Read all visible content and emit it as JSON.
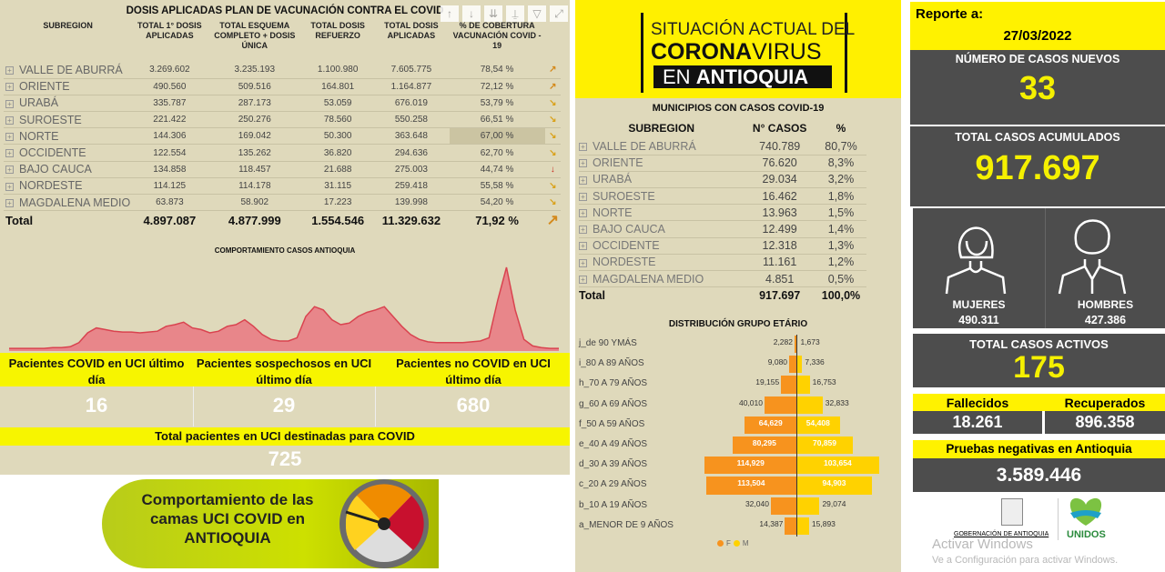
{
  "vaccination": {
    "title": "DOSIS APLICADAS PLAN DE VACUNACIÓN CONTRA EL COVID",
    "columns": [
      "SUBREGION",
      "TOTAL 1° DOSIS APLICADAS",
      "TOTAL ESQUEMA COMPLETO + DOSIS ÚNICA",
      "TOTAL DOSIS REFUERZO",
      "TOTAL DOSIS APLICADAS",
      "% DE COBERTURA VACUNACIÓN COVID - 19"
    ],
    "rows": [
      [
        "VALLE DE ABURRÁ",
        "3.269.602",
        "3.235.193",
        "1.100.980",
        "7.605.775",
        "78,54 %",
        "up"
      ],
      [
        "ORIENTE",
        "490.560",
        "509.516",
        "164.801",
        "1.164.877",
        "72,12 %",
        "up"
      ],
      [
        "URABÁ",
        "335.787",
        "287.173",
        "53.059",
        "676.019",
        "53,79 %",
        "down-right"
      ],
      [
        "SUROESTE",
        "221.422",
        "250.276",
        "78.560",
        "550.258",
        "66,51 %",
        "down-right"
      ],
      [
        "NORTE",
        "144.306",
        "169.042",
        "50.300",
        "363.648",
        "67,00 %",
        "down-right"
      ],
      [
        "OCCIDENTE",
        "122.554",
        "135.262",
        "36.820",
        "294.636",
        "62,70 %",
        "down-right"
      ],
      [
        "BAJO CAUCA",
        "134.858",
        "118.457",
        "21.688",
        "275.003",
        "44,74 %",
        "down"
      ],
      [
        "NORDESTE",
        "114.125",
        "114.178",
        "31.115",
        "259.418",
        "55,58 %",
        "down-right"
      ],
      [
        "MAGDALENA MEDIO",
        "63.873",
        "58.902",
        "17.223",
        "139.998",
        "54,20 %",
        "down-right"
      ]
    ],
    "total": [
      "Total",
      "4.897.087",
      "4.877.999",
      "1.554.546",
      "11.329.632",
      "71,92 %",
      "up"
    ],
    "toolbar_icons": [
      "arrow-up-icon",
      "arrow-down-icon",
      "double-arrow-down-icon",
      "expand-hierarchy-icon",
      "filter-icon",
      "focus-mode-icon"
    ]
  },
  "chart_data": {
    "type": "area",
    "title": "COMPORTAMIENTO CASOS ANTIOQUIA",
    "color": "#e8868a",
    "line_color": "#d9434f",
    "values": [
      1,
      1,
      1,
      1,
      1,
      2,
      2,
      3,
      8,
      20,
      26,
      24,
      22,
      21,
      21,
      20,
      21,
      22,
      28,
      30,
      33,
      26,
      24,
      20,
      22,
      28,
      30,
      36,
      28,
      18,
      12,
      10,
      10,
      14,
      40,
      52,
      48,
      36,
      30,
      32,
      40,
      45,
      48,
      52,
      40,
      28,
      18,
      12,
      9,
      8,
      8,
      8,
      8,
      9,
      10,
      14,
      60,
      100,
      48,
      12,
      4,
      2,
      1,
      1
    ]
  },
  "uci": {
    "covid_label": "Pacientes COVID en UCI último día",
    "covid_value": "16",
    "sospechosos_label": "Pacientes sospechosos en UCI último día",
    "sospechosos_value": "29",
    "no_covid_label": "Pacientes no COVID en UCI último día",
    "no_covid_value": "680",
    "total_label": "Total pacientes en UCI destinadas para COVID",
    "total_value": "725",
    "banner": "Comportamiento de las camas UCI COVID en ANTIOQUIA"
  },
  "header": {
    "line1": "SITUACIÓN ACTUAL DEL",
    "line2a": "CORONA",
    "line2b": "VIRUS",
    "line3a": "EN ",
    "line3b": "ANTIOQUIA"
  },
  "municipios": {
    "title": "MUNICIPIOS CON CASOS COVID-19",
    "columns": [
      "SUBREGION",
      "N° CASOS",
      "%"
    ],
    "rows": [
      [
        "VALLE DE ABURRÁ",
        "740.789",
        "80,7%"
      ],
      [
        "ORIENTE",
        "76.620",
        "8,3%"
      ],
      [
        "URABÁ",
        "29.034",
        "3,2%"
      ],
      [
        "SUROESTE",
        "16.462",
        "1,8%"
      ],
      [
        "NORTE",
        "13.963",
        "1,5%"
      ],
      [
        "BAJO CAUCA",
        "12.499",
        "1,4%"
      ],
      [
        "OCCIDENTE",
        "12.318",
        "1,3%"
      ],
      [
        "NORDESTE",
        "11.161",
        "1,2%"
      ],
      [
        "MAGDALENA MEDIO",
        "4.851",
        "0,5%"
      ]
    ],
    "total": [
      "Total",
      "917.697",
      "100,0%"
    ]
  },
  "age_chart": {
    "type": "bar",
    "title": "DISTRIBUCIÓN GRUPO ETÁRIO",
    "categories": [
      "j_de 90 YMÁS",
      "i_80 A 89 AÑOS",
      "h_70 A 79 AÑOS",
      "g_60 A 69 AÑOS",
      "f_50 A 59 AÑOS",
      "e_40 A 49 AÑOS",
      "d_30 A 39 AÑOS",
      "c_20 A 29 AÑOS",
      "b_10 A 19 AÑOS",
      "a_MENOR DE 9 AÑOS"
    ],
    "series": [
      {
        "name": "F",
        "color": "#f7931e",
        "values": [
          2282,
          9080,
          19155,
          40010,
          64629,
          80295,
          114929,
          113504,
          32040,
          14387
        ],
        "labels": [
          "2,282",
          "9,080",
          "19,155",
          "40,010",
          "64,629",
          "80,295",
          "114,929",
          "113,504",
          "32,040",
          "14,387"
        ]
      },
      {
        "name": "M",
        "color": "#ffd200",
        "values": [
          1673,
          7336,
          16753,
          32833,
          54408,
          70859,
          103654,
          94903,
          29074,
          15893
        ],
        "labels": [
          "1,673",
          "7,336",
          "16,753",
          "32,833",
          "54,408",
          "70,859",
          "103,654",
          "94,903",
          "29,074",
          "15,893"
        ]
      }
    ]
  },
  "report": {
    "label": "Reporte a:",
    "date": "27/03/2022",
    "new_label": "NÚMERO DE CASOS NUEVOS",
    "new_value": "33",
    "acc_label": "TOTAL CASOS ACUMULADOS",
    "acc_value": "917.697",
    "women_label": "MUJERES",
    "women_value": "490.311",
    "men_label": "HOMBRES",
    "men_value": "427.386",
    "active_label": "TOTAL CASOS ACTIVOS",
    "active_value": "175",
    "deaths_label": "Fallecidos",
    "deaths_value": "18.261",
    "recovered_label": "Recuperados",
    "recovered_value": "896.358",
    "neg_label": "Pruebas negativas en Antioquia",
    "neg_value": "3.589.446",
    "gov_logo": "GOBERNACIÓN DE ANTIOQUIA",
    "unidos_logo": "UNIDOS"
  },
  "watermark": {
    "line1": "Activar Windows",
    "line2": "Ve a Configuración para activar Windows."
  }
}
